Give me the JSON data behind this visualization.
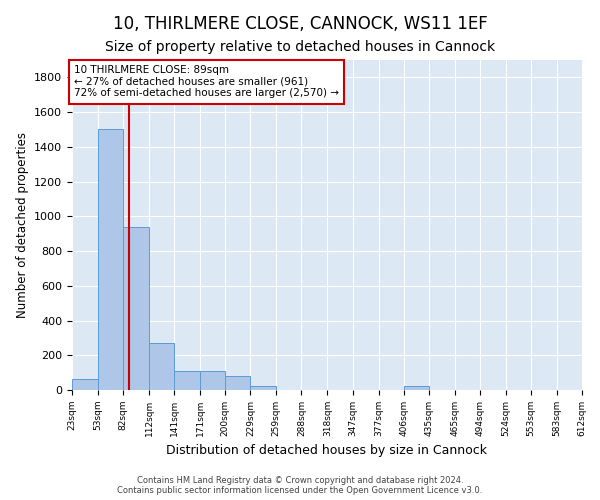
{
  "title1": "10, THIRLMERE CLOSE, CANNOCK, WS11 1EF",
  "title2": "Size of property relative to detached houses in Cannock",
  "xlabel": "Distribution of detached houses by size in Cannock",
  "ylabel": "Number of detached properties",
  "bin_edges": [
    23,
    53,
    82,
    112,
    141,
    171,
    200,
    229,
    259,
    288,
    318,
    347,
    377,
    406,
    435,
    465,
    494,
    524,
    553,
    583,
    612
  ],
  "bar_heights": [
    65,
    1500,
    940,
    270,
    110,
    110,
    80,
    25,
    0,
    0,
    0,
    0,
    0,
    25,
    0,
    0,
    0,
    0,
    0,
    0
  ],
  "bar_color": "#aec6e8",
  "bar_edge_color": "#5b9bd5",
  "property_size": 89,
  "red_line_color": "#cc0000",
  "annotation_line1": "10 THIRLMERE CLOSE: 89sqm",
  "annotation_line2": "← 27% of detached houses are smaller (961)",
  "annotation_line3": "72% of semi-detached houses are larger (2,570) →",
  "annotation_box_color": "#cc0000",
  "ylim": [
    0,
    1900
  ],
  "yticks": [
    0,
    200,
    400,
    600,
    800,
    1000,
    1200,
    1400,
    1600,
    1800
  ],
  "background_color": "#dce9f5",
  "footer_text": "Contains HM Land Registry data © Crown copyright and database right 2024.\nContains public sector information licensed under the Open Government Licence v3.0.",
  "title1_fontsize": 12,
  "title2_fontsize": 10,
  "xlabel_fontsize": 9,
  "ylabel_fontsize": 8.5
}
